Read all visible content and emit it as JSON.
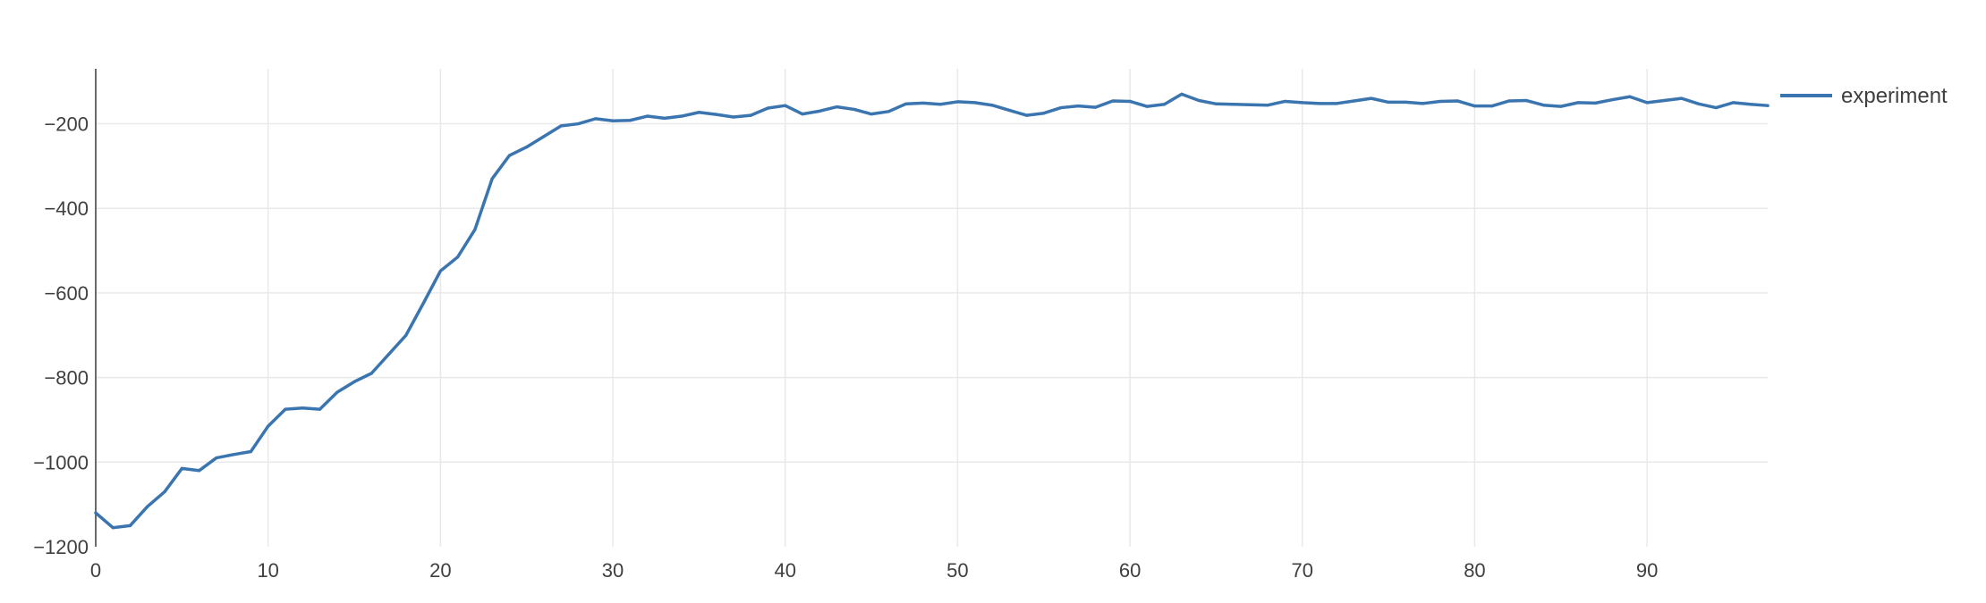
{
  "chart_data": {
    "type": "line",
    "title": "",
    "xlabel": "",
    "ylabel": "",
    "xlim": [
      0,
      97
    ],
    "ylim": [
      -1200,
      -70
    ],
    "x_ticks": [
      0,
      10,
      20,
      30,
      40,
      50,
      60,
      70,
      80,
      90
    ],
    "x_tick_labels": [
      "0",
      "10",
      "20",
      "30",
      "40",
      "50",
      "60",
      "70",
      "80",
      "90"
    ],
    "y_ticks": [
      -1200,
      -1000,
      -800,
      -600,
      -400,
      -200
    ],
    "y_tick_labels": [
      "−1200",
      "−1000",
      "−800",
      "−600",
      "−400",
      "−200"
    ],
    "grid": true,
    "legend_position": "top-right",
    "series": [
      {
        "name": "experiment",
        "color": "#3a75b0",
        "x": [
          0,
          1,
          2,
          3,
          4,
          5,
          6,
          7,
          8,
          9,
          10,
          11,
          12,
          13,
          14,
          15,
          16,
          17,
          18,
          19,
          20,
          21,
          22,
          23,
          24,
          25,
          26,
          27,
          28,
          29,
          30,
          31,
          32,
          33,
          34,
          35,
          36,
          37,
          38,
          39,
          40,
          41,
          42,
          43,
          44,
          45,
          46,
          47,
          48,
          49,
          50,
          51,
          52,
          53,
          54,
          55,
          56,
          57,
          58,
          59,
          60,
          61,
          62,
          63,
          64,
          65,
          66,
          67,
          68,
          69,
          70,
          71,
          72,
          73,
          74,
          75,
          76,
          77,
          78,
          79,
          80,
          81,
          82,
          83,
          84,
          85,
          86,
          87,
          88,
          89,
          90,
          91,
          92,
          93,
          94,
          95,
          96,
          97
        ],
        "y": [
          -1120,
          -1155,
          -1150,
          -1105,
          -1070,
          -1015,
          -1020,
          -990,
          -982,
          -975,
          -915,
          -875,
          -872,
          -875,
          -835,
          -810,
          -790,
          -745,
          -700,
          -625,
          -548,
          -515,
          -450,
          -330,
          -275,
          -255,
          -230,
          -205,
          -200,
          -188,
          -193,
          -192,
          -182,
          -187,
          -182,
          -173,
          -178,
          -184,
          -180,
          -163,
          -157,
          -177,
          -170,
          -160,
          -166,
          -177,
          -171,
          -153,
          -151,
          -154,
          -148,
          -150,
          -156,
          -168,
          -180,
          -175,
          -162,
          -158,
          -161,
          -146,
          -147,
          -159,
          -154,
          -130,
          -145,
          -153,
          -154,
          -155,
          -156,
          -147,
          -150,
          -152,
          -152,
          -146,
          -140,
          -149,
          -149,
          -152,
          -147,
          -146,
          -158,
          -158,
          -146,
          -145,
          -156,
          -159,
          -150,
          -151,
          -143,
          -136,
          -150,
          -145,
          -140,
          -153,
          -162,
          -150,
          -154,
          -157
        ]
      }
    ]
  }
}
